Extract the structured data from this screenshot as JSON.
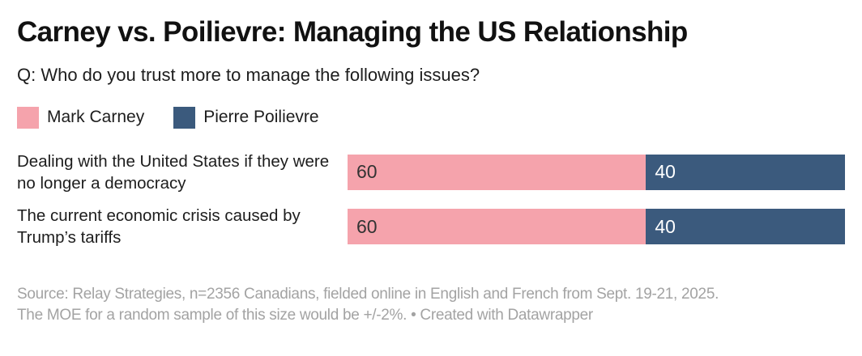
{
  "title": "Carney vs. Poilievre: Managing the US Relationship",
  "subtitle": "Q: Who do you trust more to manage the following issues?",
  "colors": {
    "carney_pink": "#f5a3ac",
    "poilievre_navy": "#3b5a7d",
    "value_on_pink": "#333333",
    "value_on_navy": "#ffffff",
    "footer_gray": "#a3a3a3"
  },
  "legend": [
    {
      "label": "Mark Carney",
      "color": "#f5a3ac"
    },
    {
      "label": "Pierre Poilievre",
      "color": "#3b5a7d"
    }
  ],
  "rows": [
    {
      "label": "Dealing with the United States if they were no longer a democracy",
      "segments": [
        {
          "value": 60,
          "color": "#f5a3ac",
          "text_color": "#333333"
        },
        {
          "value": 40,
          "color": "#3b5a7d",
          "text_color": "#ffffff"
        }
      ]
    },
    {
      "label": "The current economic crisis caused by Trump’s tariffs",
      "segments": [
        {
          "value": 60,
          "color": "#f5a3ac",
          "text_color": "#333333"
        },
        {
          "value": 40,
          "color": "#3b5a7d",
          "text_color": "#ffffff"
        }
      ]
    }
  ],
  "footer": {
    "line1": "Source: Relay Strategies, n=2356 Canadians, fielded online in English and French from Sept. 19-21, 2025.",
    "line2": "The MOE for a random sample of this size would be +/-2%. • Created with Datawrapper"
  },
  "chart_data": {
    "type": "bar",
    "orientation": "horizontal",
    "stacked": true,
    "title": "Carney vs. Poilievre: Managing the US Relationship",
    "subtitle": "Q: Who do you trust more to manage the following issues?",
    "categories": [
      "Dealing with the United States if they were no longer a democracy",
      "The current economic crisis caused by Trump’s tariffs"
    ],
    "series": [
      {
        "name": "Mark Carney",
        "values": [
          60,
          60
        ],
        "color": "#f5a3ac"
      },
      {
        "name": "Pierre Poilievre",
        "values": [
          40,
          40
        ],
        "color": "#3b5a7d"
      }
    ],
    "xlim": [
      0,
      100
    ],
    "grid": false,
    "legend_position": "top-left",
    "value_labels": "inside-start",
    "source_note": "Source: Relay Strategies, n=2356 Canadians, fielded online in English and French from Sept. 19-21, 2025. The MOE for a random sample of this size would be +/-2%. • Created with Datawrapper"
  }
}
